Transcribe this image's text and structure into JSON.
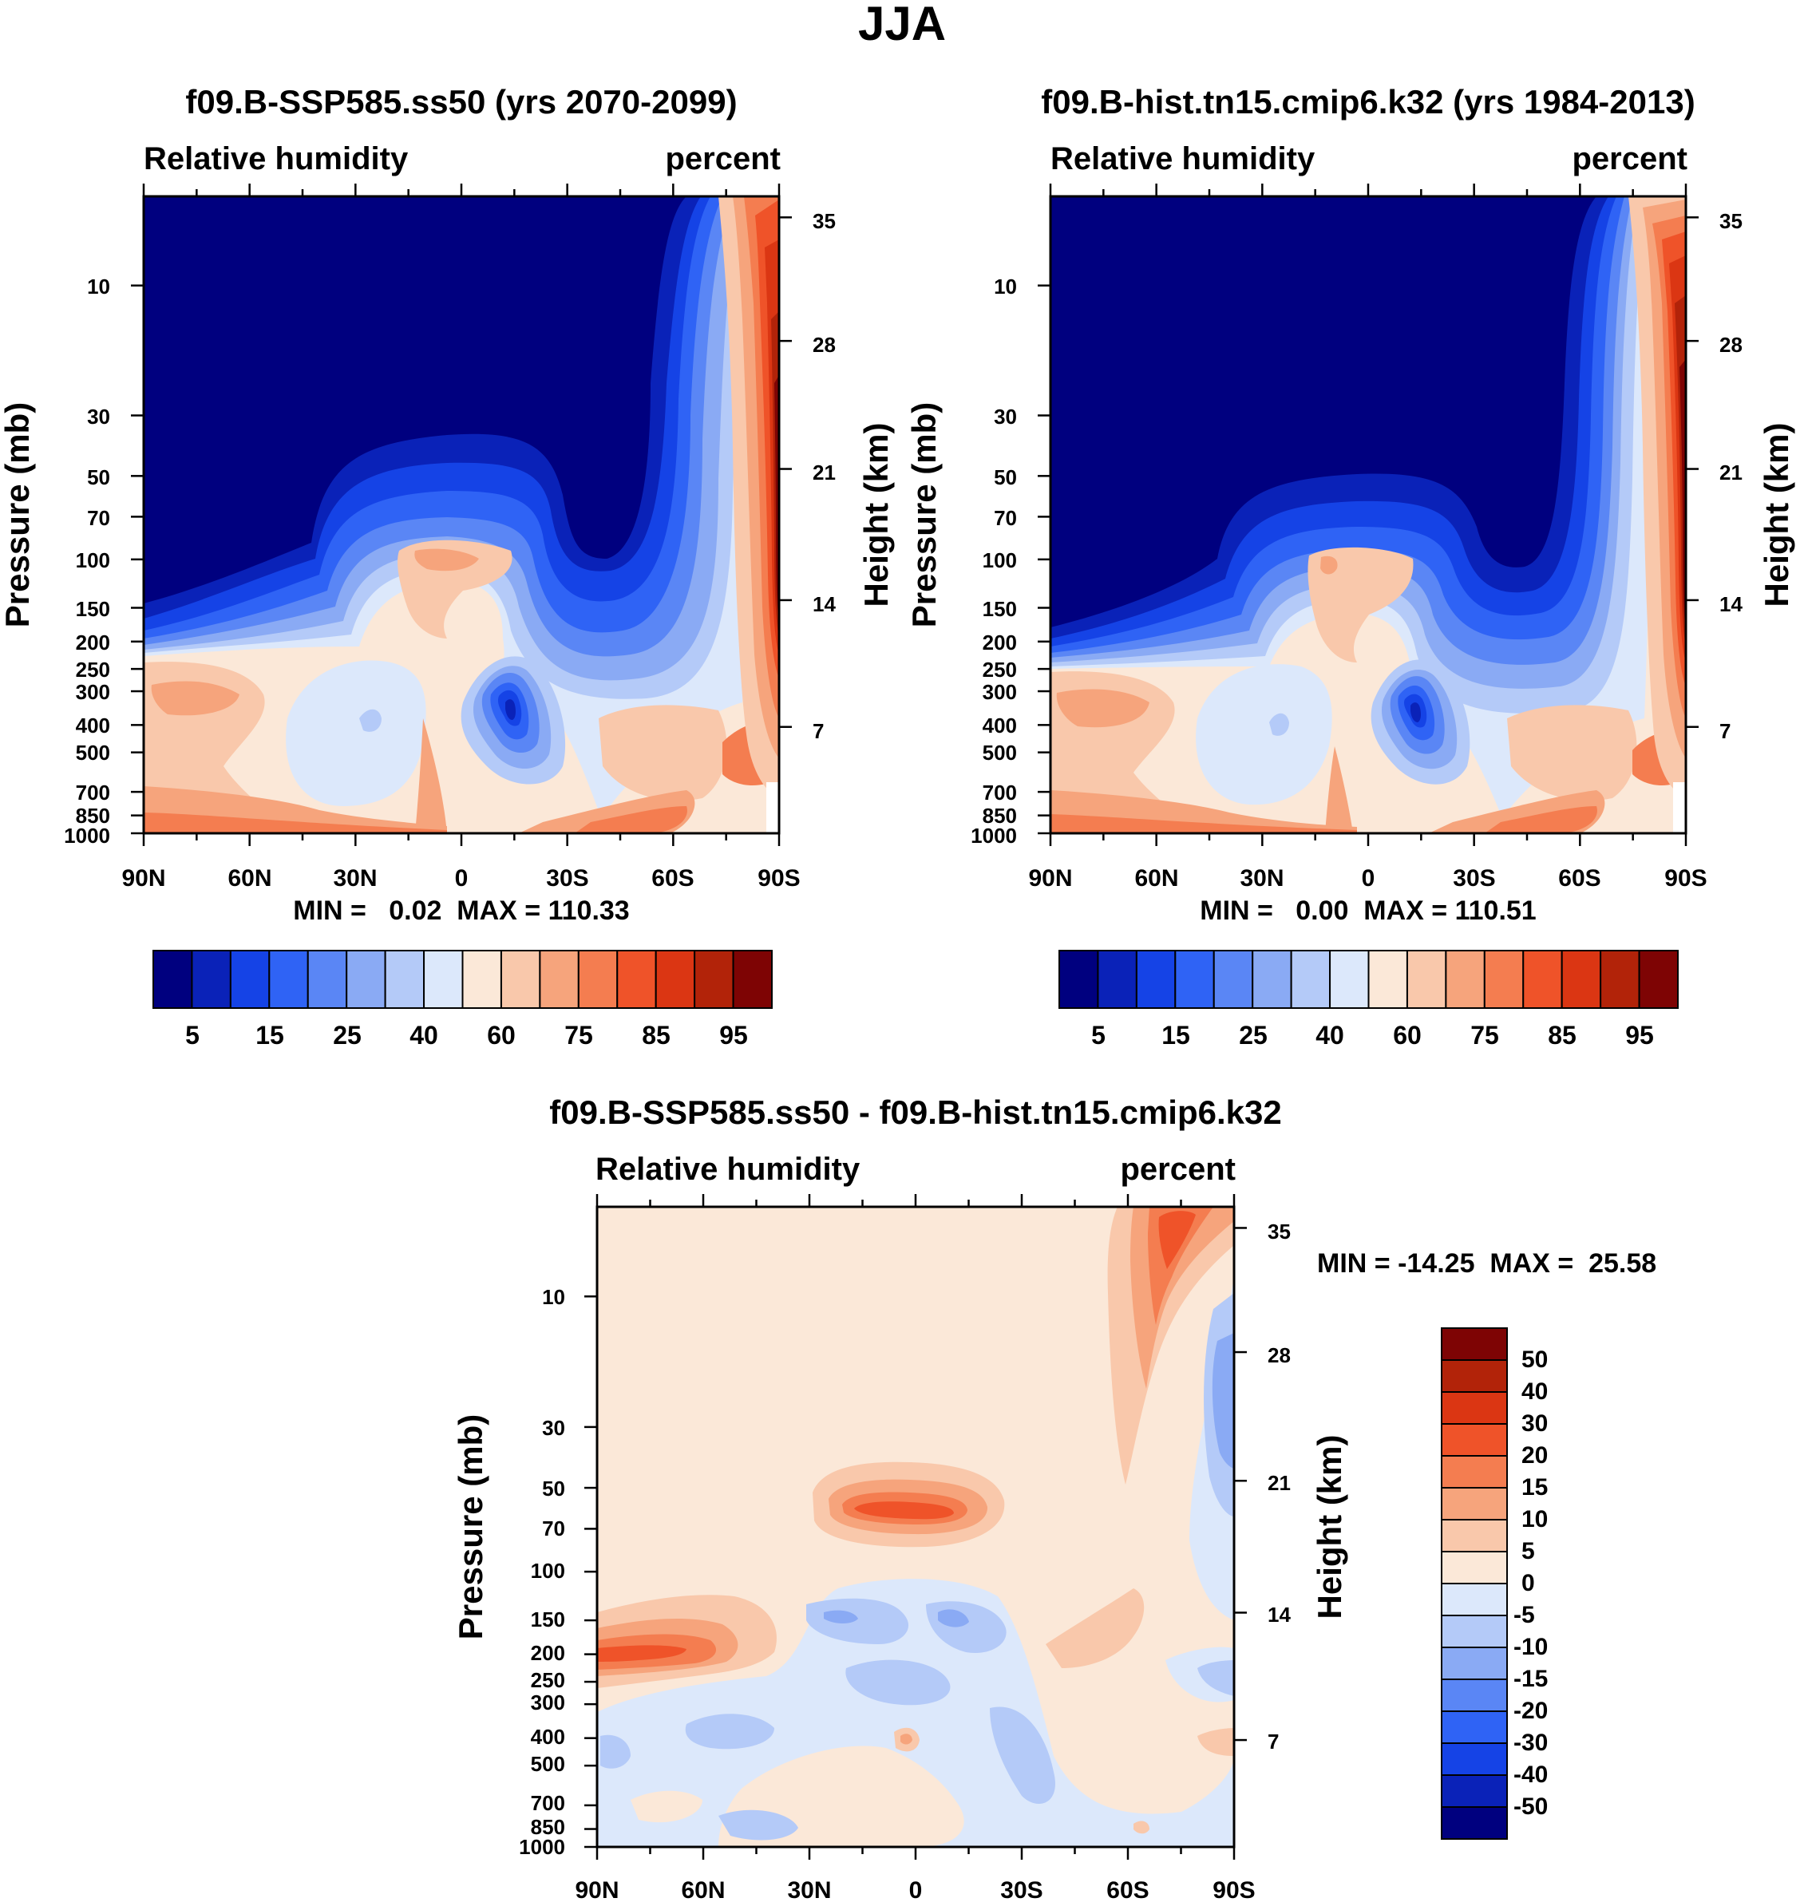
{
  "figure_title": "JJA",
  "chart_data": [
    {
      "type": "contour",
      "panel": "top-left",
      "title": "f09.B-SSP585.ss50 (yrs 2070-2099)",
      "left_label": "Relative humidity",
      "right_label": "percent",
      "ylabel": "Pressure (mb)",
      "ylabel_right": "Height (km)",
      "x_ticks": [
        "90N",
        "60N",
        "30N",
        "0",
        "30S",
        "60S",
        "90S"
      ],
      "y_ticks": [
        "10",
        "30",
        "50",
        "70",
        "100",
        "150",
        "200",
        "250",
        "300",
        "400",
        "500",
        "700",
        "850",
        "1000"
      ],
      "height_ticks": [
        "35",
        "28",
        "21",
        "14",
        "7"
      ],
      "min_max": "MIN =   0.02  MAX = 110.33",
      "colorbar_labels": [
        "5",
        "15",
        "25",
        "40",
        "60",
        "75",
        "85",
        "95"
      ],
      "field_min": 0.02,
      "field_max": 110.33
    },
    {
      "type": "contour",
      "panel": "top-right",
      "title": "f09.B-hist.tn15.cmip6.k32 (yrs 1984-2013)",
      "left_label": "Relative humidity",
      "right_label": "percent",
      "ylabel": "Pressure (mb)",
      "ylabel_right": "Height (km)",
      "x_ticks": [
        "90N",
        "60N",
        "30N",
        "0",
        "30S",
        "60S",
        "90S"
      ],
      "y_ticks": [
        "10",
        "30",
        "50",
        "70",
        "100",
        "150",
        "200",
        "250",
        "300",
        "400",
        "500",
        "700",
        "850",
        "1000"
      ],
      "height_ticks": [
        "35",
        "28",
        "21",
        "14",
        "7"
      ],
      "min_max": "MIN =   0.00  MAX = 110.51",
      "colorbar_labels": [
        "5",
        "15",
        "25",
        "40",
        "60",
        "75",
        "85",
        "95"
      ],
      "field_min": 0.0,
      "field_max": 110.51
    },
    {
      "type": "contour",
      "panel": "bottom",
      "title": "f09.B-SSP585.ss50 - f09.B-hist.tn15.cmip6.k32",
      "left_label": "Relative humidity",
      "right_label": "percent",
      "ylabel": "Pressure (mb)",
      "ylabel_right": "Height (km)",
      "x_ticks": [
        "90N",
        "60N",
        "30N",
        "0",
        "30S",
        "60S",
        "90S"
      ],
      "y_ticks": [
        "10",
        "30",
        "50",
        "70",
        "100",
        "150",
        "200",
        "250",
        "300",
        "400",
        "500",
        "700",
        "850",
        "1000"
      ],
      "height_ticks": [
        "35",
        "28",
        "21",
        "14",
        "7"
      ],
      "min_max": "MIN = -14.25  MAX =  25.58",
      "colorbar_labels": [
        "50",
        "40",
        "30",
        "20",
        "15",
        "10",
        "5",
        "0",
        "-5",
        "-10",
        "-15",
        "-20",
        "-30",
        "-40",
        "-50"
      ],
      "field_min": -14.25,
      "field_max": 25.58
    }
  ],
  "palette": [
    "#00007f",
    "#0a22b8",
    "#1543e6",
    "#2f63f5",
    "#5a86f5",
    "#8aaaf4",
    "#b4caf8",
    "#dce8fb",
    "#fbe8d8",
    "#f9c8ab",
    "#f6a47c",
    "#f47d50",
    "#ef5329",
    "#db3613",
    "#b22309",
    "#7e0404"
  ]
}
